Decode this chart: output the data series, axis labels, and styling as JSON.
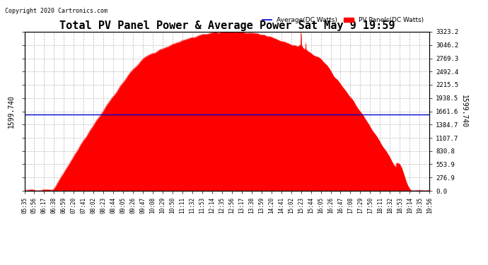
{
  "title": "Total PV Panel Power & Average Power Sat May 9 19:59",
  "copyright": "Copyright 2020 Cartronics.com",
  "legend_average": "Average(DC Watts)",
  "legend_pv": "PV Panels(DC Watts)",
  "average_value": 1599.74,
  "y_max": 3323.2,
  "y_min": 0.0,
  "y_ticks": [
    0.0,
    276.9,
    553.9,
    830.8,
    1107.7,
    1384.7,
    1661.6,
    1938.5,
    2215.5,
    2492.4,
    2769.3,
    3046.2,
    3323.2
  ],
  "x_tick_labels": [
    "05:35",
    "05:56",
    "06:17",
    "06:38",
    "06:59",
    "07:20",
    "07:41",
    "08:02",
    "08:23",
    "08:44",
    "09:05",
    "09:26",
    "09:47",
    "10:08",
    "10:29",
    "10:50",
    "11:11",
    "11:32",
    "11:53",
    "12:14",
    "12:35",
    "12:56",
    "13:17",
    "13:38",
    "13:59",
    "14:20",
    "14:41",
    "15:02",
    "15:23",
    "15:44",
    "16:05",
    "16:26",
    "16:47",
    "17:08",
    "17:29",
    "17:50",
    "18:11",
    "18:32",
    "18:53",
    "19:14",
    "19:35",
    "19:56"
  ],
  "pv_color": "#FF0000",
  "avg_line_color": "#0000CD",
  "background_color": "#FFFFFF",
  "grid_color": "#AAAAAA",
  "title_fontsize": 11,
  "label_fontsize": 7
}
